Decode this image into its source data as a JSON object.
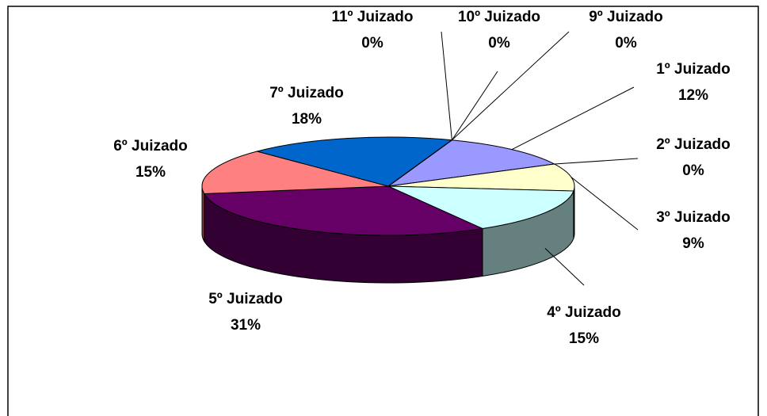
{
  "chart_data": {
    "type": "pie",
    "categories": [
      "1º Juizado",
      "2º Juizado",
      "3º Juizado",
      "4º Juizado",
      "5º Juizado",
      "6º Juizado",
      "7º Juizado",
      "11º Juizado",
      "10º Juizado",
      "9º Juizado"
    ],
    "values": [
      12,
      0,
      9,
      15,
      31,
      15,
      18,
      0,
      0,
      0
    ],
    "value_labels": [
      "12%",
      "0%",
      "9%",
      "15%",
      "31%",
      "15%",
      "18%",
      "0%",
      "0%",
      "0%"
    ],
    "colors": [
      "#9999ff",
      "#993366",
      "#ffffcc",
      "#ccffff",
      "#660066",
      "#ff8080",
      "#0066cc",
      "#c0c0c0",
      "#000080",
      "#ff00ff"
    ]
  }
}
